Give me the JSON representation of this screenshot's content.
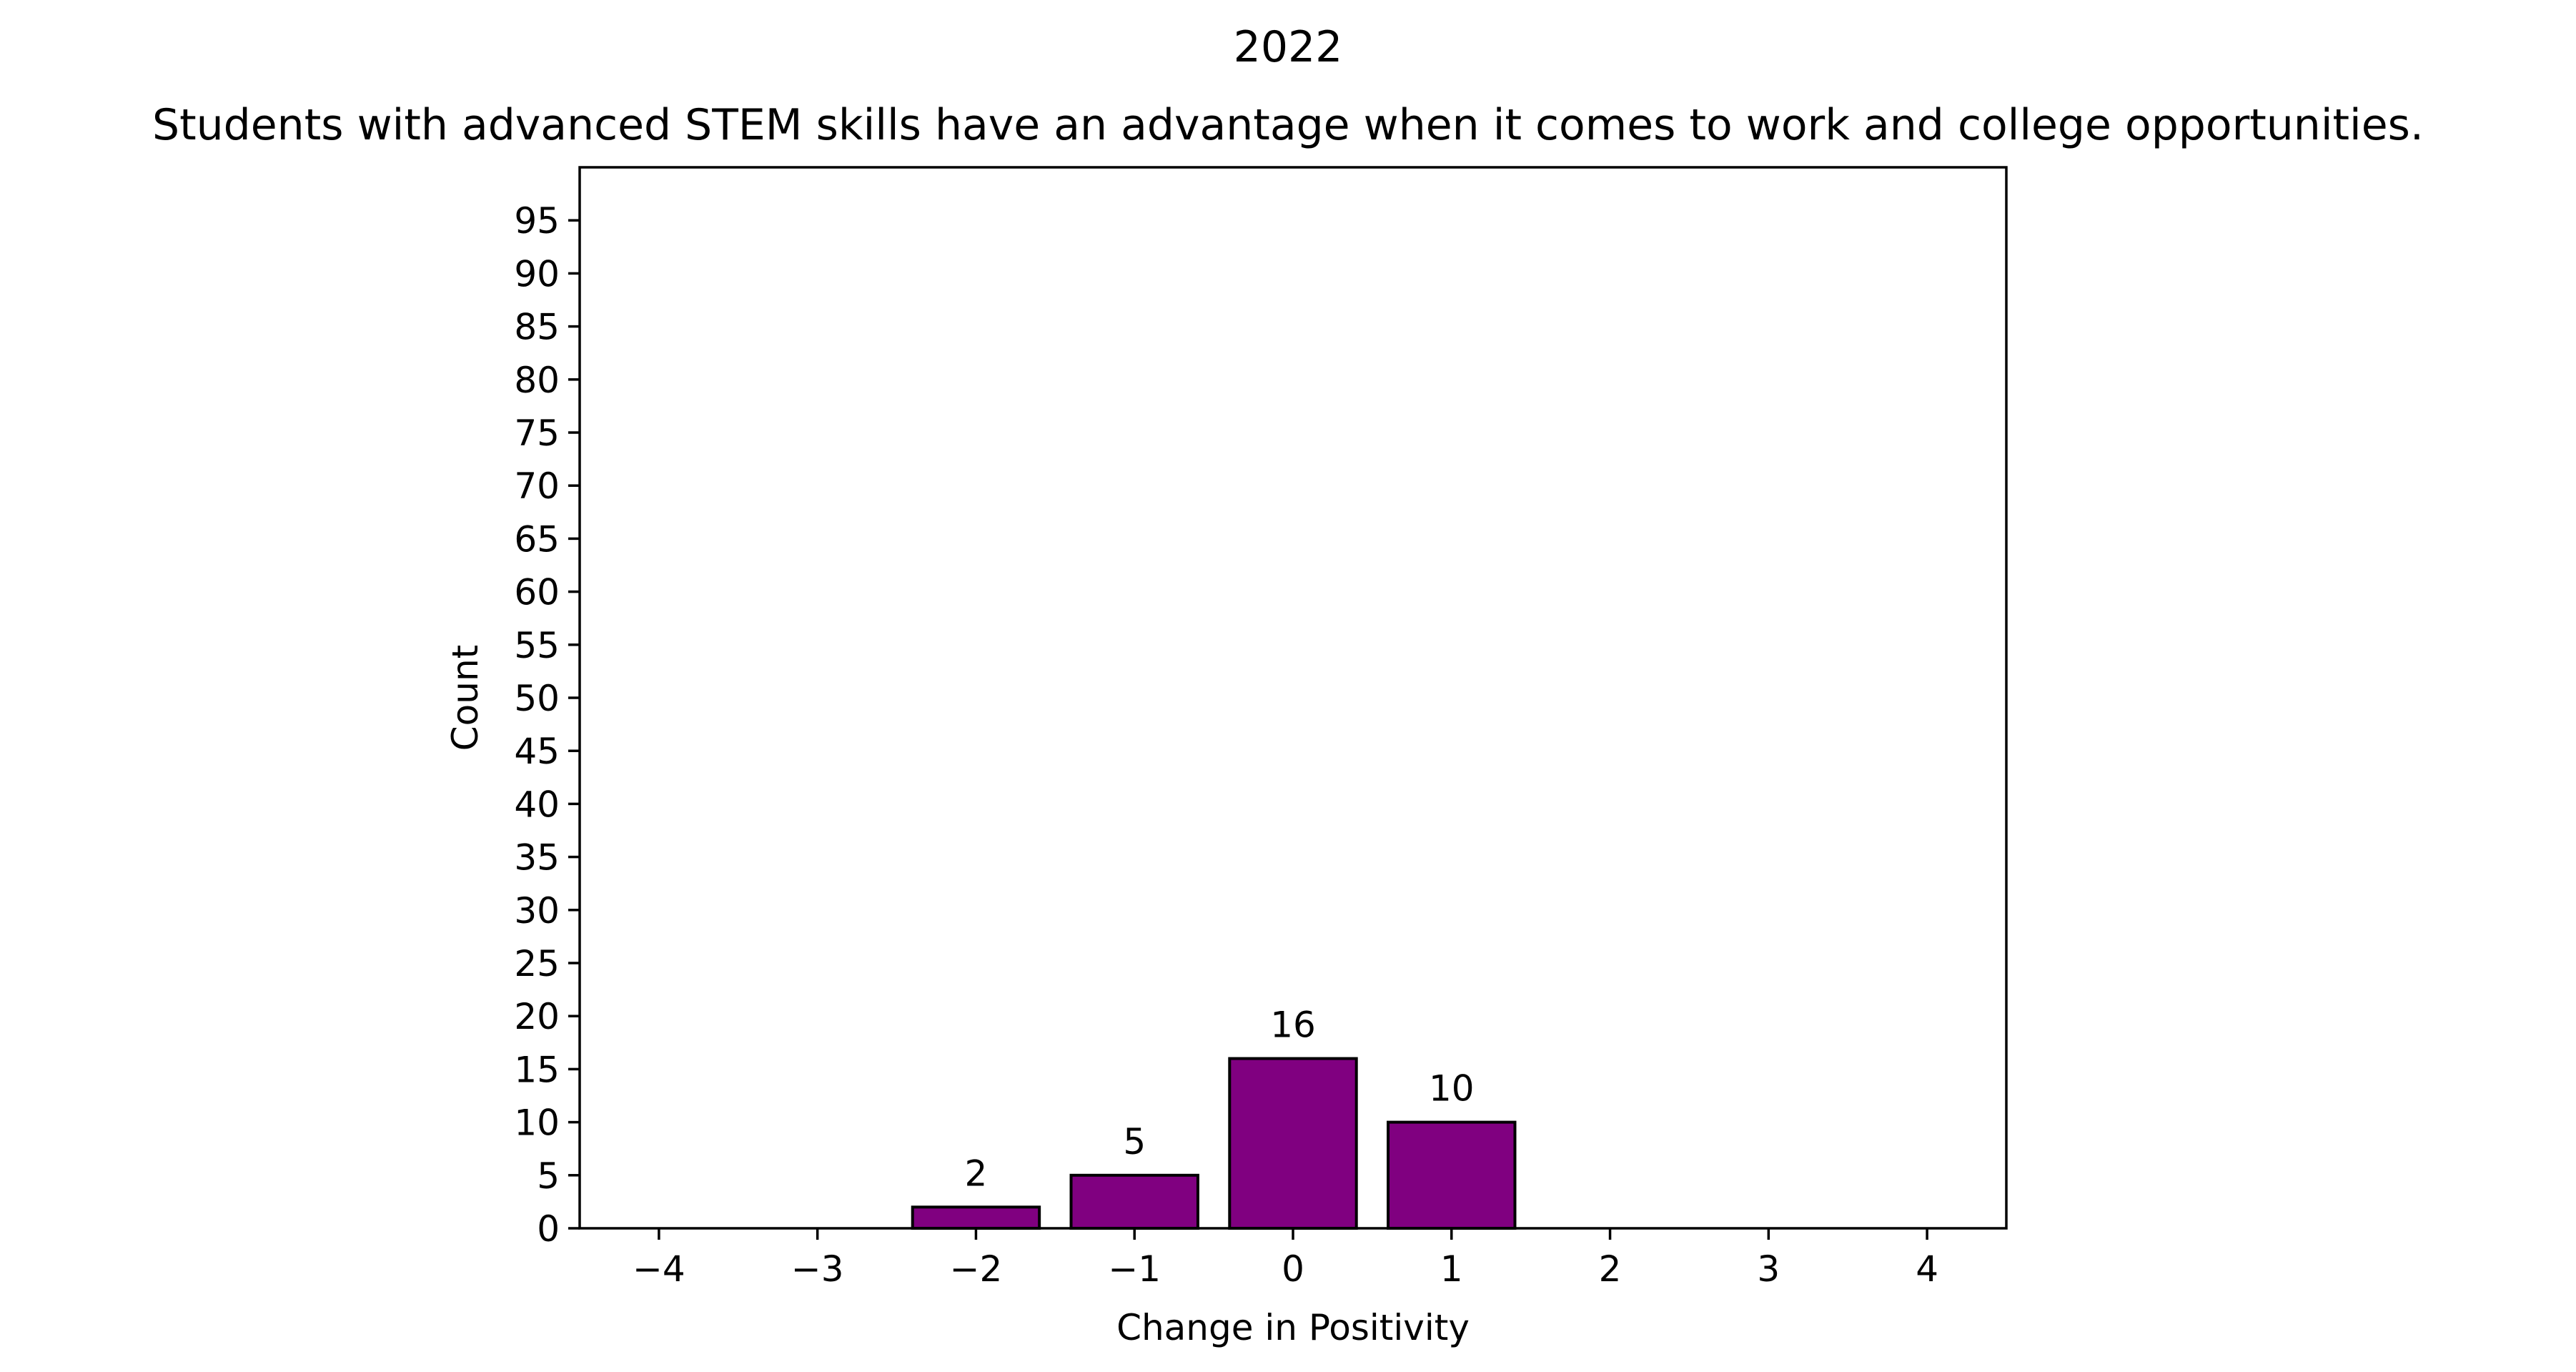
{
  "chart_data": {
    "type": "bar",
    "suptitle": "2022",
    "title": "Students with advanced STEM skills have an advantage when it comes to work and college opportunities.",
    "xlabel": "Change in Positivity",
    "ylabel": "Count",
    "categories": [
      -2,
      -1,
      0,
      1
    ],
    "values": [
      2,
      5,
      16,
      10
    ],
    "data_labels": [
      "2",
      "5",
      "16",
      "10"
    ],
    "xlim": [
      -4.5,
      4.5
    ],
    "ylim": [
      0,
      100
    ],
    "xticks": [
      -4,
      -3,
      -2,
      -1,
      0,
      1,
      2,
      3,
      4
    ],
    "xtick_labels": [
      "−4",
      "−3",
      "−2",
      "−1",
      "0",
      "1",
      "2",
      "3",
      "4"
    ],
    "yticks": [
      0,
      5,
      10,
      15,
      20,
      25,
      30,
      35,
      40,
      45,
      50,
      55,
      60,
      65,
      70,
      75,
      80,
      85,
      90,
      95
    ],
    "bar_color": "#800080",
    "edge_color": "#000000",
    "grid": false,
    "legend": "none"
  }
}
